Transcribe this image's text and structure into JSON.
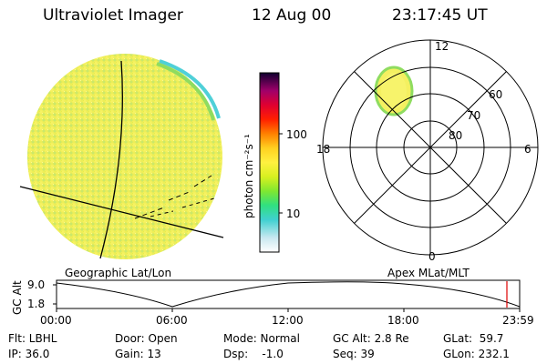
{
  "header": {
    "title": "Ultraviolet Imager",
    "date": "12 Aug 00",
    "time": "23:17:45 UT"
  },
  "colorbar": {
    "unit_label": "photon cm⁻²s⁻¹",
    "tick_labels": [
      "100",
      "10"
    ]
  },
  "polar_plot": {
    "top_label": "12",
    "bottom_label": "0",
    "left_label": "18",
    "right_label": "6",
    "lat_labels": [
      "60",
      "70",
      "80"
    ]
  },
  "captions": {
    "geo": "Geographic Lat/Lon",
    "apex": "Apex MLat/MLT"
  },
  "timeline": {
    "ylabel": "GC Alt",
    "ytick_top": "9.0",
    "ytick_bottom": "1.8",
    "xticks": [
      "00:00",
      "06:00",
      "12:00",
      "18:00",
      "23:59"
    ]
  },
  "info": {
    "flt": "Flt: LBHL",
    "ip": "IP: 36.0",
    "door": "Door: Open",
    "gain": "Gain: 13",
    "mode": "Mode: Normal",
    "dsp": "Dsp:    -1.0",
    "gcalt": "GC Alt: 2.8 Re",
    "seq": "Seq: 39",
    "glat": "GLat:  59.7",
    "glon": "GLon: 232.1"
  }
}
